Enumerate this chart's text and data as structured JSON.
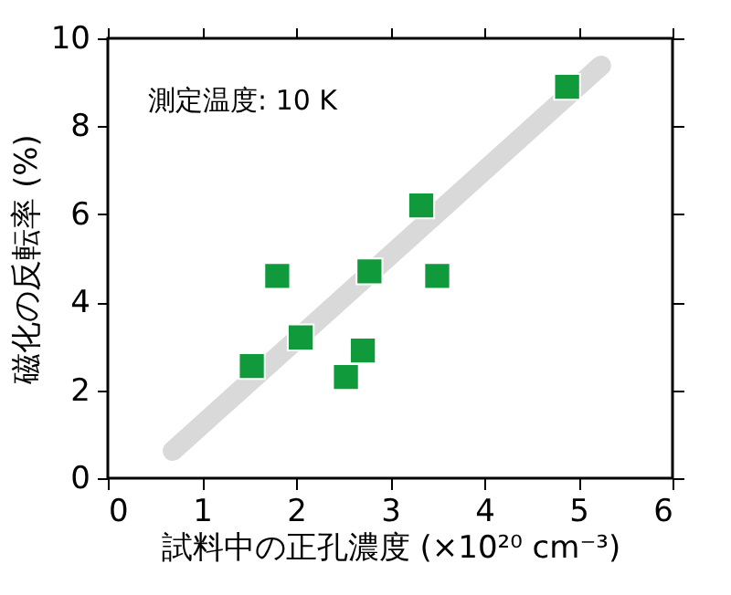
{
  "chart_data": {
    "type": "scatter",
    "xlabel": "試料中の正孔濃度 (×10²⁰ cm⁻³)",
    "ylabel": "磁化の反転率 (%)",
    "annotations": [
      "測定温度: 10 K"
    ],
    "xlim": [
      0,
      6
    ],
    "xticks": [
      0,
      1,
      2,
      3,
      4,
      5,
      6
    ],
    "ylim": [
      0,
      10
    ],
    "yticks": [
      0,
      2,
      4,
      6,
      8,
      10
    ],
    "grid": false,
    "series": [
      {
        "type": "line",
        "marker": "none",
        "line_style": "solid",
        "color": "#d9d9d9",
        "x": [
          0.69,
          5.24
        ],
        "values": [
          0.62,
          9.38
        ]
      },
      {
        "color": "#109a3c",
        "marker": "square",
        "x": [
          1.53,
          1.8,
          2.05,
          2.53,
          2.71,
          2.78,
          3.33,
          3.5,
          4.88
        ],
        "values": [
          2.55,
          4.6,
          3.2,
          2.3,
          2.9,
          4.7,
          6.2,
          4.6,
          8.9
        ]
      }
    ]
  }
}
